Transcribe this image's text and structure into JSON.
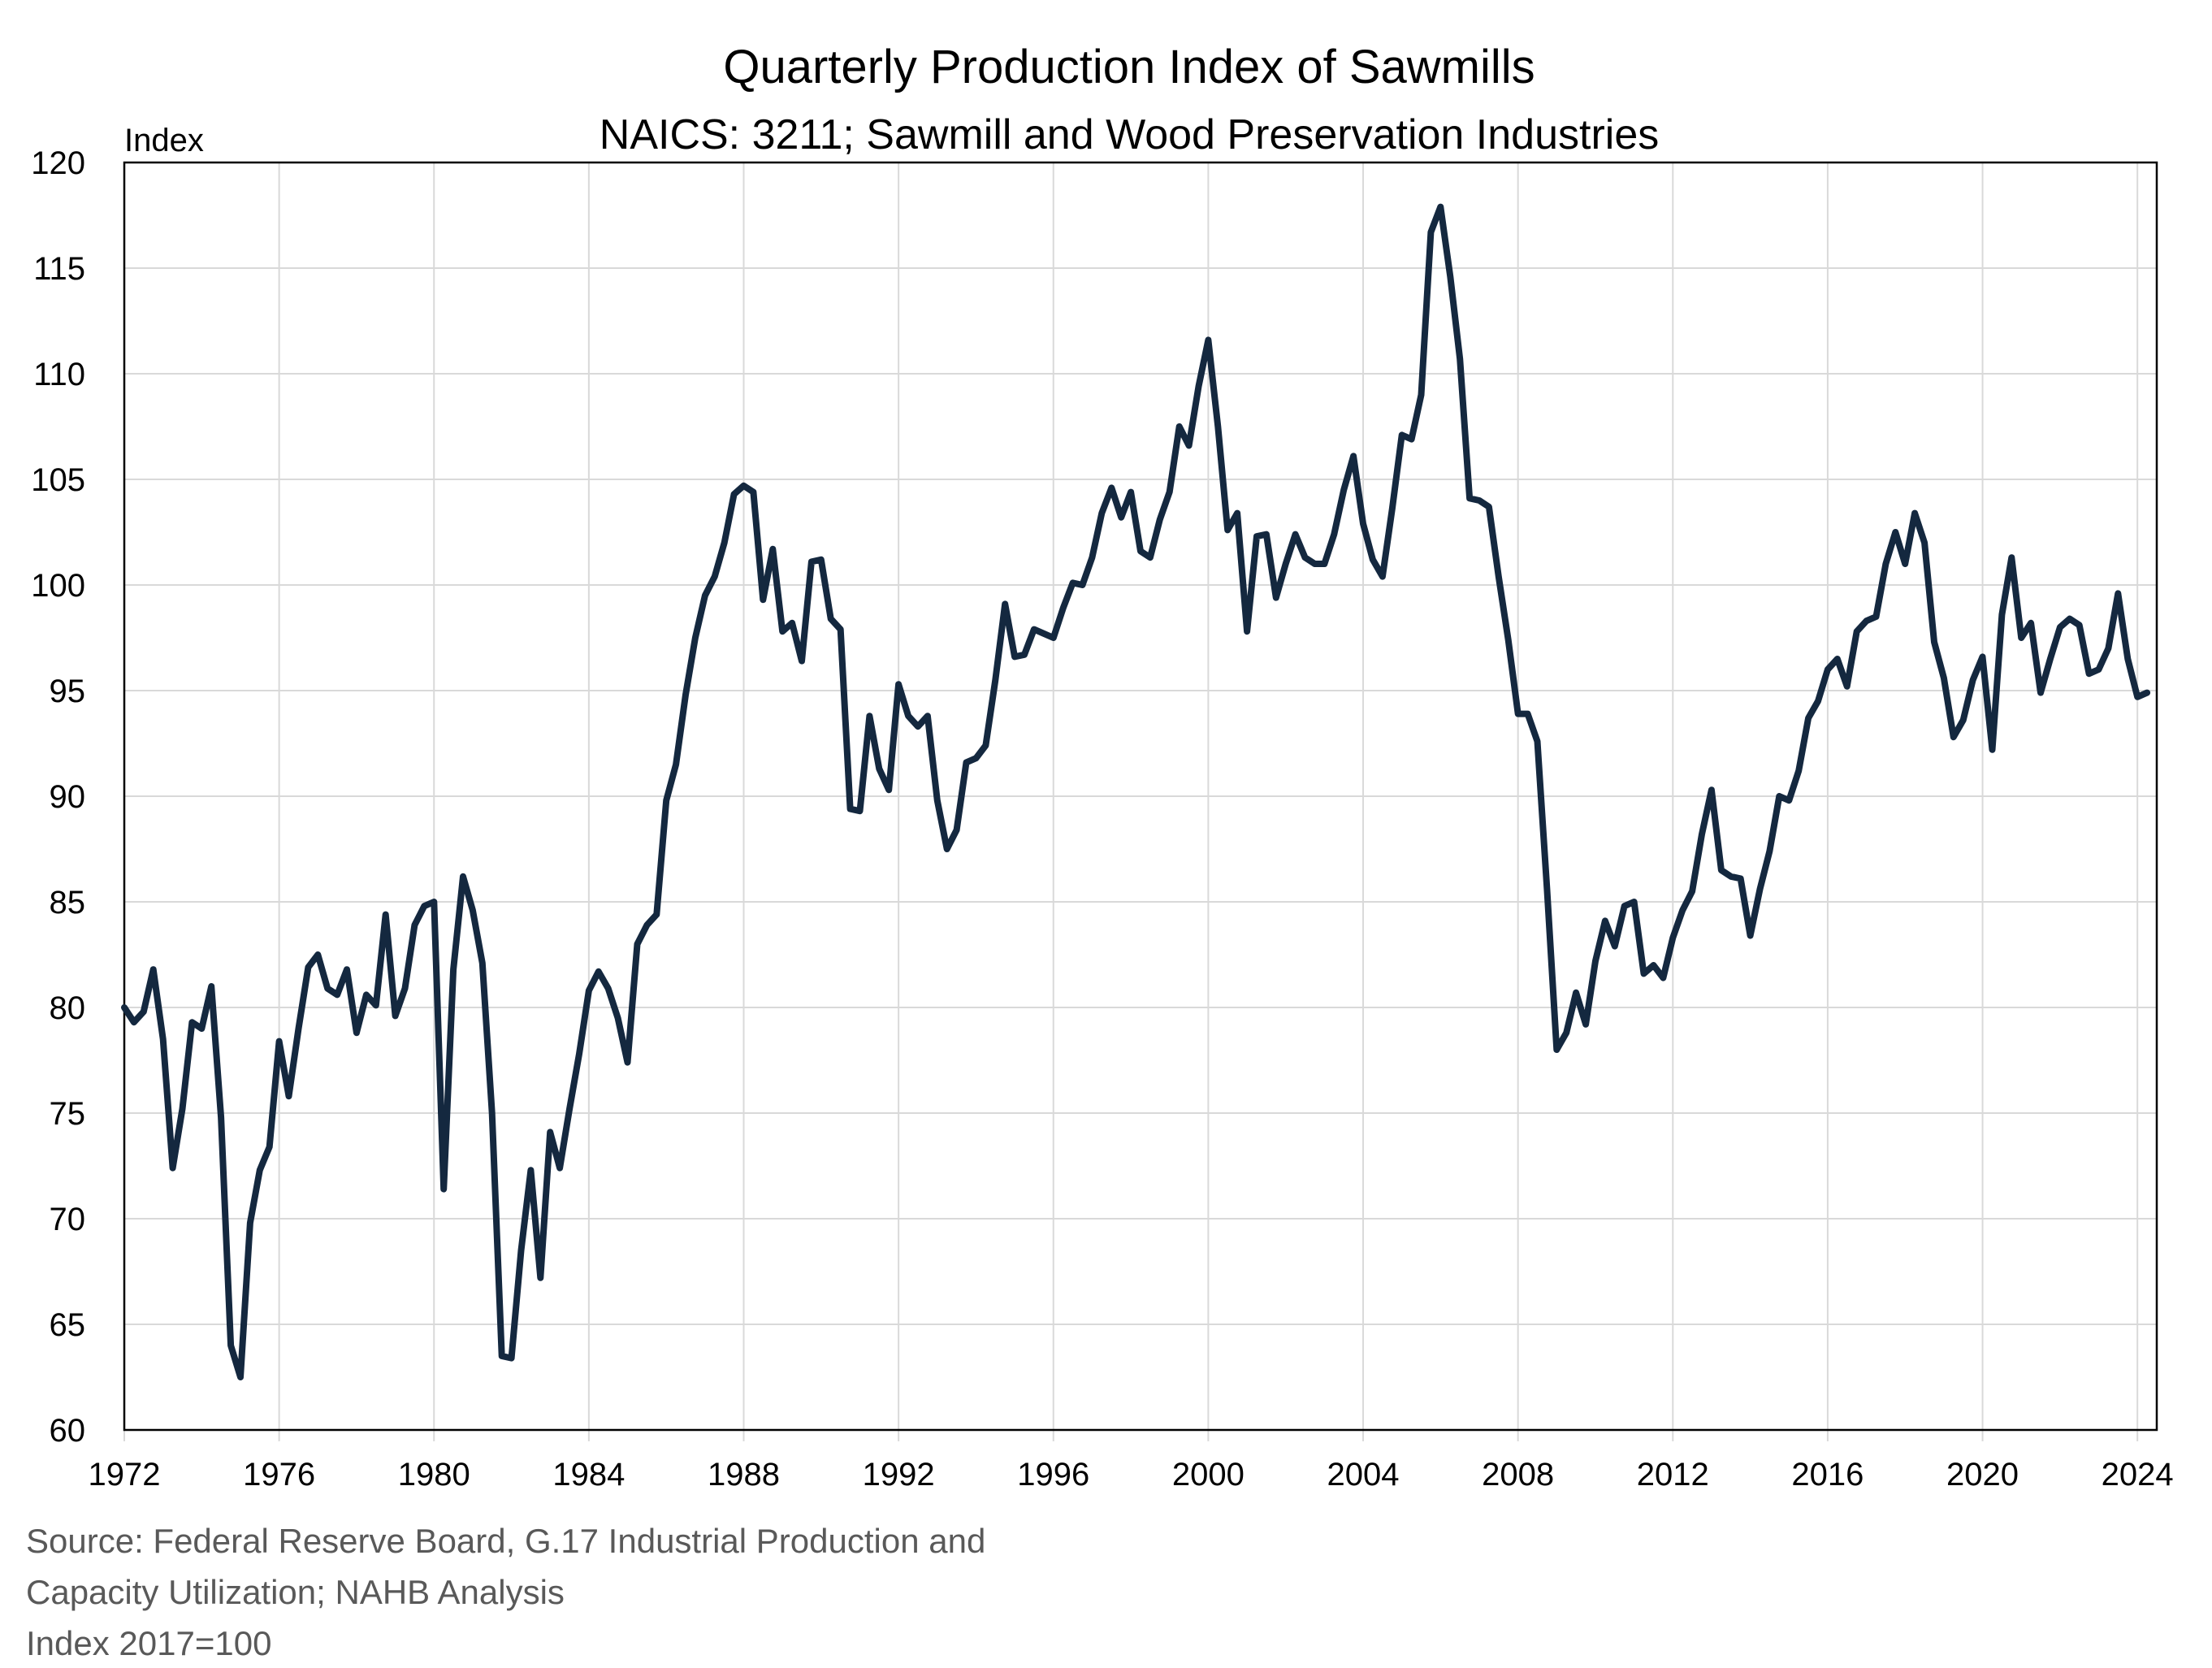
{
  "chart_data": {
    "type": "line",
    "title": "Quarterly Production Index of Sawmills",
    "subtitle": "NAICS: 3211; Sawmill and Wood Preservation Industries",
    "ylabel": "Index",
    "xlabel": "",
    "xlim": [
      1972,
      2024.5
    ],
    "ylim": [
      60,
      120
    ],
    "y_ticks": [
      60,
      65,
      70,
      75,
      80,
      85,
      90,
      95,
      100,
      105,
      110,
      115,
      120
    ],
    "x_ticks": [
      "1972",
      "1976",
      "1980",
      "1984",
      "1988",
      "1992",
      "1996",
      "2000",
      "2004",
      "2008",
      "2012",
      "2016",
      "2020",
      "2024"
    ],
    "grid": true,
    "legend": "none",
    "line_color": "#14283f",
    "series": [
      {
        "x": [
          1972.0,
          1972.25,
          1972.5,
          1972.75,
          1973.0,
          1973.25,
          1973.5,
          1973.75,
          1974.0,
          1974.25,
          1974.5,
          1974.75,
          1975.0,
          1975.25,
          1975.5,
          1975.75,
          1976.0,
          1976.25,
          1976.5,
          1976.75,
          1977.0,
          1977.25,
          1977.5,
          1977.75,
          1978.0,
          1978.25,
          1978.5,
          1978.75,
          1979.0,
          1979.25,
          1979.5,
          1979.75,
          1980.0,
          1980.25,
          1980.5,
          1980.75,
          1981.0,
          1981.25,
          1981.5,
          1981.75,
          1982.0,
          1982.25,
          1982.5,
          1982.75,
          1983.0,
          1983.25,
          1983.5,
          1983.75,
          1984.0,
          1984.25,
          1984.5,
          1984.75,
          1985.0,
          1985.25,
          1985.5,
          1985.75,
          1986.0,
          1986.25,
          1986.5,
          1986.75,
          1987.0,
          1987.25,
          1987.5,
          1987.75,
          1988.0,
          1988.25,
          1988.5,
          1988.75,
          1989.0,
          1989.25,
          1989.5,
          1989.75,
          1990.0,
          1990.25,
          1990.5,
          1990.75,
          1991.0,
          1991.25,
          1991.5,
          1991.75,
          1992.0,
          1992.25,
          1992.5,
          1992.75,
          1993.0,
          1993.25,
          1993.5,
          1993.75,
          1994.0,
          1994.25,
          1994.5,
          1994.75,
          1995.0,
          1995.25,
          1995.5,
          1995.75,
          1996.0,
          1996.25,
          1996.5,
          1996.75,
          1997.0,
          1997.25,
          1997.5,
          1997.75,
          1998.0,
          1998.25,
          1998.5,
          1998.75,
          1999.0,
          1999.25,
          1999.5,
          1999.75,
          2000.0,
          2000.25,
          2000.5,
          2000.75,
          2001.0,
          2001.25,
          2001.5,
          2001.75,
          2002.0,
          2002.25,
          2002.5,
          2002.75,
          2003.0,
          2003.25,
          2003.5,
          2003.75,
          2004.0,
          2004.25,
          2004.5,
          2004.75,
          2005.0,
          2005.25,
          2005.5,
          2005.75,
          2006.0,
          2006.25,
          2006.5,
          2006.75,
          2007.0,
          2007.25,
          2007.5,
          2007.75,
          2008.0,
          2008.25,
          2008.5,
          2008.75,
          2009.0,
          2009.25,
          2009.5,
          2009.75,
          2010.0,
          2010.25,
          2010.5,
          2010.75,
          2011.0,
          2011.25,
          2011.5,
          2011.75,
          2012.0,
          2012.25,
          2012.5,
          2012.75,
          2013.0,
          2013.25,
          2013.5,
          2013.75,
          2014.0,
          2014.25,
          2014.5,
          2014.75,
          2015.0,
          2015.25,
          2015.5,
          2015.75,
          2016.0,
          2016.25,
          2016.5,
          2016.75,
          2017.0,
          2017.25,
          2017.5,
          2017.75,
          2018.0,
          2018.25,
          2018.5,
          2018.75,
          2019.0,
          2019.25,
          2019.5,
          2019.75,
          2020.0,
          2020.25,
          2020.5,
          2020.75,
          2021.0,
          2021.25,
          2021.5,
          2021.75,
          2022.0,
          2022.25,
          2022.5,
          2022.75,
          2023.0,
          2023.25,
          2023.5,
          2023.75,
          2024.0,
          2024.25
        ],
        "y": [
          80.0,
          79.3,
          79.8,
          81.8,
          78.5,
          72.4,
          75.2,
          79.3,
          79.0,
          81.0,
          74.8,
          64.0,
          62.5,
          69.8,
          72.3,
          73.4,
          78.4,
          75.8,
          79.0,
          81.9,
          82.5,
          80.9,
          80.6,
          81.8,
          78.8,
          80.6,
          80.1,
          84.4,
          79.6,
          80.9,
          83.9,
          84.8,
          85.0,
          71.4,
          81.8,
          86.2,
          84.6,
          82.1,
          75.0,
          63.5,
          63.4,
          68.5,
          72.3,
          67.2,
          74.1,
          72.4,
          75.2,
          77.8,
          80.8,
          81.7,
          80.9,
          79.5,
          77.4,
          83.0,
          83.9,
          84.4,
          89.8,
          91.5,
          94.8,
          97.5,
          99.5,
          100.4,
          102.0,
          104.3,
          104.7,
          104.4,
          99.3,
          101.7,
          97.8,
          98.2,
          96.4,
          101.1,
          101.2,
          98.4,
          97.9,
          89.4,
          89.3,
          93.8,
          91.3,
          90.3,
          95.3,
          93.8,
          93.3,
          93.8,
          89.8,
          87.5,
          88.4,
          91.6,
          91.8,
          92.4,
          95.5,
          99.1,
          96.6,
          96.7,
          97.9,
          97.7,
          97.5,
          98.9,
          100.1,
          100.0,
          101.3,
          103.4,
          104.6,
          103.2,
          104.4,
          101.6,
          101.3,
          103.1,
          104.4,
          107.5,
          106.6,
          109.4,
          111.6,
          107.5,
          102.6,
          103.4,
          97.8,
          102.3,
          102.4,
          99.4,
          101.0,
          102.4,
          101.3,
          101.0,
          101.0,
          102.4,
          104.5,
          106.1,
          102.9,
          101.2,
          100.4,
          103.6,
          107.1,
          106.9,
          109.0,
          116.7,
          117.9,
          114.6,
          110.7,
          104.1,
          104.0,
          103.7,
          100.4,
          97.4,
          93.9,
          93.9,
          92.6,
          85.6,
          78.0,
          78.8,
          80.7,
          79.2,
          82.2,
          84.1,
          82.9,
          84.8,
          85.0,
          81.6,
          82.0,
          81.4,
          83.3,
          84.6,
          85.5,
          88.2,
          90.3,
          86.5,
          86.2,
          86.1,
          83.4,
          85.6,
          87.4,
          90.0,
          89.8,
          91.2,
          93.7,
          94.5,
          96.0,
          96.5,
          95.2,
          97.8,
          98.3,
          98.5,
          101.0,
          102.5,
          101.0,
          103.4,
          102.0,
          97.3,
          95.6,
          92.8,
          93.6,
          95.5,
          96.6,
          92.2,
          98.6,
          101.3,
          97.5,
          98.2,
          94.9,
          96.5,
          98.0,
          98.4,
          98.1,
          95.8,
          96.0,
          97.0,
          99.6,
          96.5,
          94.7,
          94.9
        ]
      }
    ]
  },
  "notes": {
    "source_line1": "Source: Federal Reserve Board, G.17 Industrial Production and",
    "source_line2": "Capacity Utilization; NAHB Analysis",
    "index_base": "Index 2017=100"
  }
}
